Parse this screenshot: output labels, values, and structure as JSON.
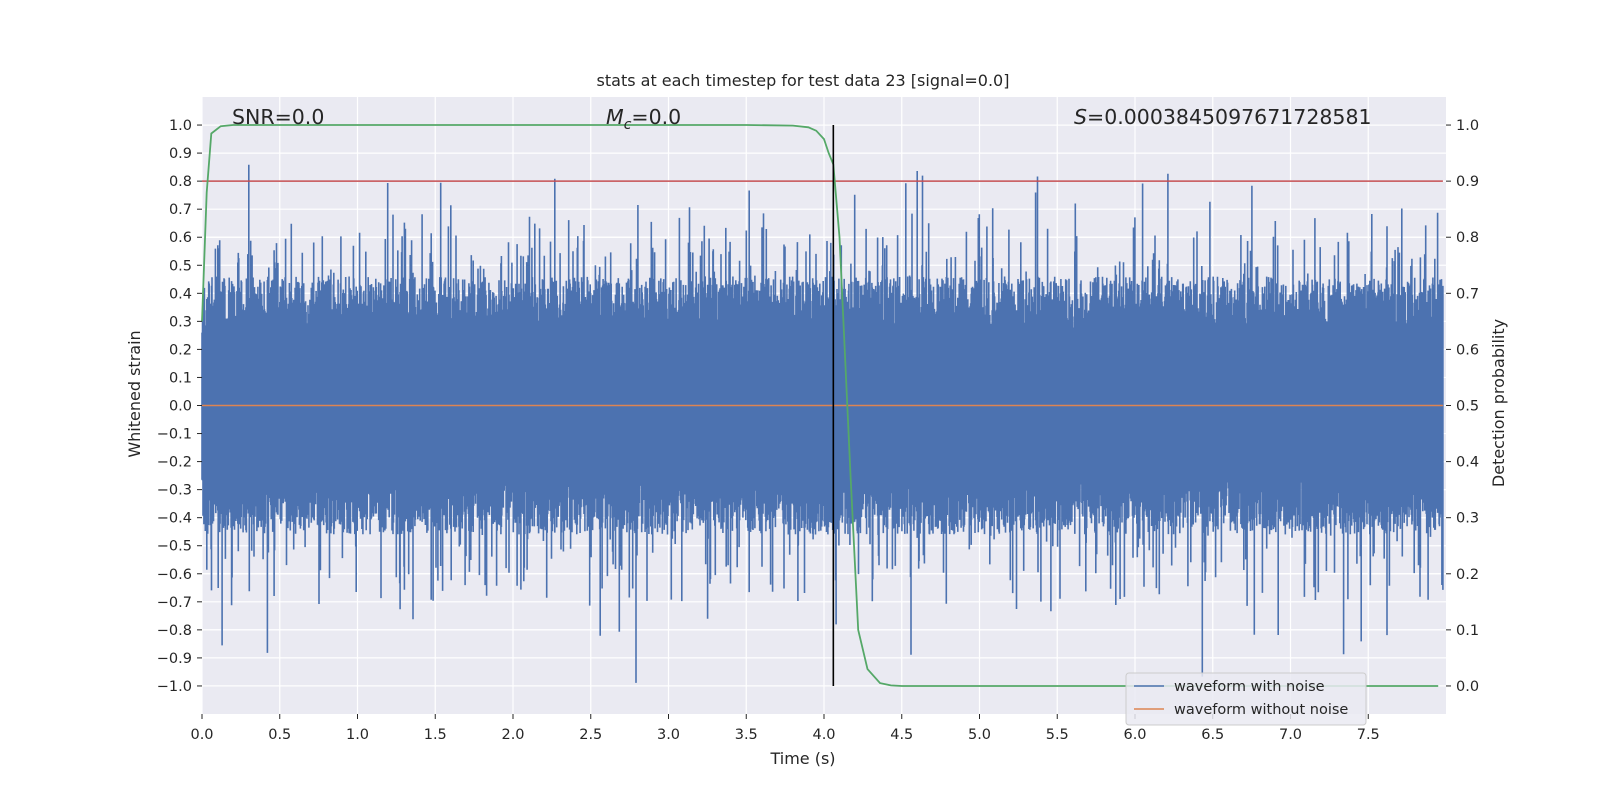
{
  "chart_data": {
    "type": "line",
    "title": "stats at each timestep for test data 23 [signal=0.0]",
    "xlabel": "Time (s)",
    "ylabel": "Whitened strain",
    "y2label": "Detection probability",
    "xlim": [
      0.0,
      8.0
    ],
    "ylim": [
      -1.1,
      1.1
    ],
    "y2lim": [
      -0.05,
      1.05
    ],
    "x_ticks": [
      "0.0",
      "0.5",
      "1.0",
      "1.5",
      "2.0",
      "2.5",
      "3.0",
      "3.5",
      "4.0",
      "4.5",
      "5.0",
      "5.5",
      "6.0",
      "6.5",
      "7.0",
      "7.5"
    ],
    "y_ticks": [
      "1.0",
      "0.9",
      "0.8",
      "0.7",
      "0.6",
      "0.5",
      "0.4",
      "0.3",
      "0.2",
      "0.1",
      "0.0",
      "−0.1",
      "−0.2",
      "−0.3",
      "−0.4",
      "−0.5",
      "−0.6",
      "−0.7",
      "−0.8",
      "−0.9",
      "−1.0"
    ],
    "y2_ticks": [
      "1.0",
      "0.9",
      "0.8",
      "0.7",
      "0.6",
      "0.5",
      "0.4",
      "0.3",
      "0.2",
      "0.1",
      "0.0"
    ],
    "annotations": {
      "snr": "SNR=0.0",
      "mc_symbol": "M",
      "mc_sub": "c",
      "mc_value": "=0.0",
      "s_symbol": "S",
      "s_value": "=0.0003845097671728581"
    },
    "series": [
      {
        "name": "waveform with noise",
        "color": "#4c72b0",
        "axis": "left",
        "description": "dense whitened noise, mostly within ±0.4, peaks near ±1.0"
      },
      {
        "name": "waveform without noise",
        "color": "#dd8452",
        "axis": "left",
        "values_constant": 0.0
      },
      {
        "name": "detection probability",
        "color": "#55a868",
        "axis": "right",
        "x": [
          0.0,
          0.03,
          0.06,
          0.12,
          0.2,
          0.5,
          1.0,
          2.0,
          3.0,
          3.5,
          3.8,
          3.9,
          3.95,
          4.0,
          4.03,
          4.06,
          4.1,
          4.13,
          4.17,
          4.22,
          4.28,
          4.36,
          4.43,
          4.5,
          5.0,
          6.0,
          7.0,
          7.95
        ],
        "values": [
          0.65,
          0.88,
          0.985,
          0.998,
          1.0,
          1.0,
          1.0,
          1.0,
          1.0,
          1.0,
          0.999,
          0.996,
          0.99,
          0.975,
          0.95,
          0.93,
          0.8,
          0.62,
          0.38,
          0.1,
          0.03,
          0.005,
          0.001,
          0.0,
          0.0,
          0.0,
          0.0,
          0.0
        ]
      },
      {
        "name": "threshold",
        "color": "#c44e52",
        "axis": "right",
        "values_constant": 0.9
      },
      {
        "name": "detection time",
        "color": "#000000",
        "axis": "left",
        "x_constant": 4.06,
        "y_range": [
          -1.0,
          1.0
        ]
      }
    ],
    "legend": {
      "position": "lower-right",
      "items": [
        {
          "label": "waveform with noise",
          "color": "#4c72b0"
        },
        {
          "label": "waveform without noise",
          "color": "#dd8452"
        }
      ]
    },
    "colors": {
      "background": "#eaeaf2",
      "grid": "#ffffff"
    }
  }
}
